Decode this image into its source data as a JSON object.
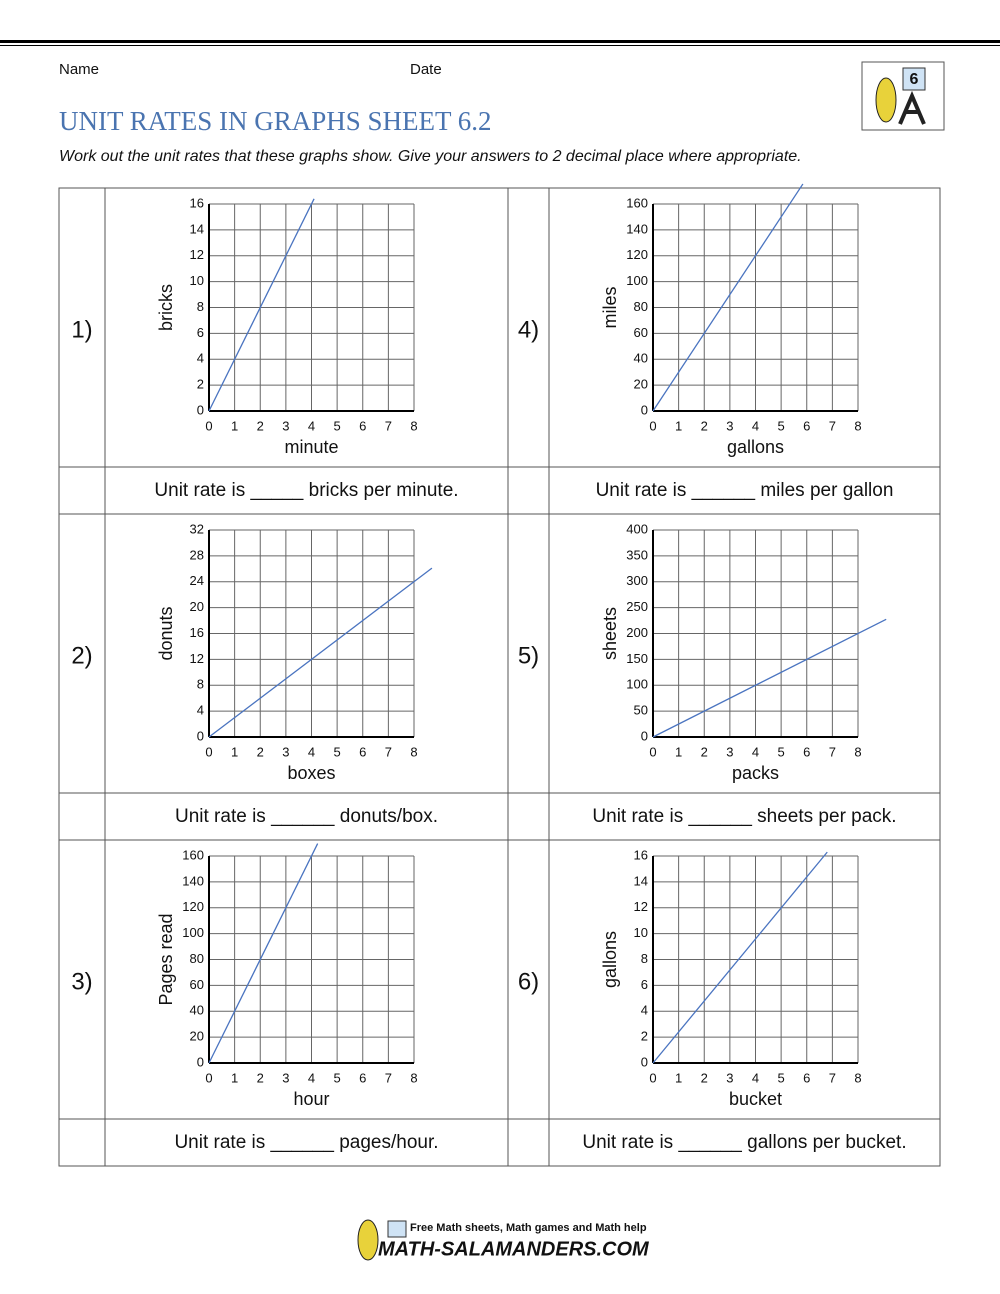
{
  "header": {
    "name_label": "Name",
    "date_label": "Date",
    "logo_grade": "6",
    "title": "UNIT RATES IN GRAPHS SHEET 6.2",
    "instructions": "Work out the unit rates that these graphs show. Give your answers to 2 decimal place where appropriate."
  },
  "problems": [
    {
      "number": "1)",
      "answer": "Unit rate is _____ bricks per minute."
    },
    {
      "number": "2)",
      "answer": "Unit rate is ______ donuts/box."
    },
    {
      "number": "3)",
      "answer": "Unit rate is ______ pages/hour."
    },
    {
      "number": "4)",
      "answer": "Unit rate is ______ miles per gallon"
    },
    {
      "number": "5)",
      "answer": "Unit rate is ______ sheets per pack."
    },
    {
      "number": "6)",
      "answer": "Unit rate is ______ gallons per bucket."
    }
  ],
  "chart_data": [
    {
      "type": "line",
      "xlabel": "minute",
      "ylabel": "bricks",
      "color": "#4a74c0",
      "grid": true,
      "x": [
        0,
        4.1
      ],
      "values": [
        0,
        16.4
      ],
      "xlim": [
        0,
        8
      ],
      "ylim": [
        0,
        16
      ],
      "xticks": [
        0,
        1,
        2,
        3,
        4,
        5,
        6,
        7,
        8
      ],
      "yticks": [
        0,
        2,
        4,
        6,
        8,
        10,
        12,
        14,
        16
      ]
    },
    {
      "type": "line",
      "xlabel": "boxes",
      "ylabel": "donuts",
      "color": "#4a74c0",
      "grid": true,
      "x": [
        0,
        8.7
      ],
      "values": [
        0,
        26.1
      ],
      "xlim": [
        0,
        8
      ],
      "ylim": [
        0,
        32
      ],
      "xticks": [
        0,
        1,
        2,
        3,
        4,
        5,
        6,
        7,
        8
      ],
      "yticks": [
        0,
        4,
        8,
        12,
        16,
        20,
        24,
        28,
        32
      ]
    },
    {
      "type": "line",
      "xlabel": "hour",
      "ylabel": "Pages read",
      "color": "#4a74c0",
      "grid": true,
      "x": [
        0,
        4.24
      ],
      "values": [
        0,
        169.6
      ],
      "xlim": [
        0,
        8
      ],
      "ylim": [
        0,
        160
      ],
      "xticks": [
        0,
        1,
        2,
        3,
        4,
        5,
        6,
        7,
        8
      ],
      "yticks": [
        0,
        20,
        40,
        60,
        80,
        100,
        120,
        140,
        160
      ]
    },
    {
      "type": "line",
      "xlabel": "gallons",
      "ylabel": "miles",
      "color": "#4a74c0",
      "grid": true,
      "x": [
        0,
        5.85
      ],
      "values": [
        0,
        175.5
      ],
      "xlim": [
        0,
        8
      ],
      "ylim": [
        0,
        160
      ],
      "xticks": [
        0,
        1,
        2,
        3,
        4,
        5,
        6,
        7,
        8
      ],
      "yticks": [
        0,
        20,
        40,
        60,
        80,
        100,
        120,
        140,
        160
      ]
    },
    {
      "type": "line",
      "xlabel": "packs",
      "ylabel": "sheets",
      "color": "#4a74c0",
      "grid": true,
      "x": [
        0,
        9.1
      ],
      "values": [
        0,
        227.5
      ],
      "xlim": [
        0,
        8
      ],
      "ylim": [
        0,
        400
      ],
      "xticks": [
        0,
        1,
        2,
        3,
        4,
        5,
        6,
        7,
        8
      ],
      "yticks": [
        0,
        50,
        100,
        150,
        200,
        250,
        300,
        350,
        400
      ]
    },
    {
      "type": "line",
      "xlabel": "bucket",
      "ylabel": "gallons",
      "color": "#4a74c0",
      "grid": true,
      "x": [
        0,
        6.8
      ],
      "values": [
        0,
        16.3
      ],
      "xlim": [
        0,
        8
      ],
      "ylim": [
        0,
        16
      ],
      "xticks": [
        0,
        1,
        2,
        3,
        4,
        5,
        6,
        7,
        8
      ],
      "yticks": [
        0,
        2,
        4,
        6,
        8,
        10,
        12,
        14,
        16
      ]
    }
  ],
  "footer": {
    "tagline": "Free Math sheets, Math games and Math help",
    "site": "MATH-SALAMANDERS.COM"
  }
}
